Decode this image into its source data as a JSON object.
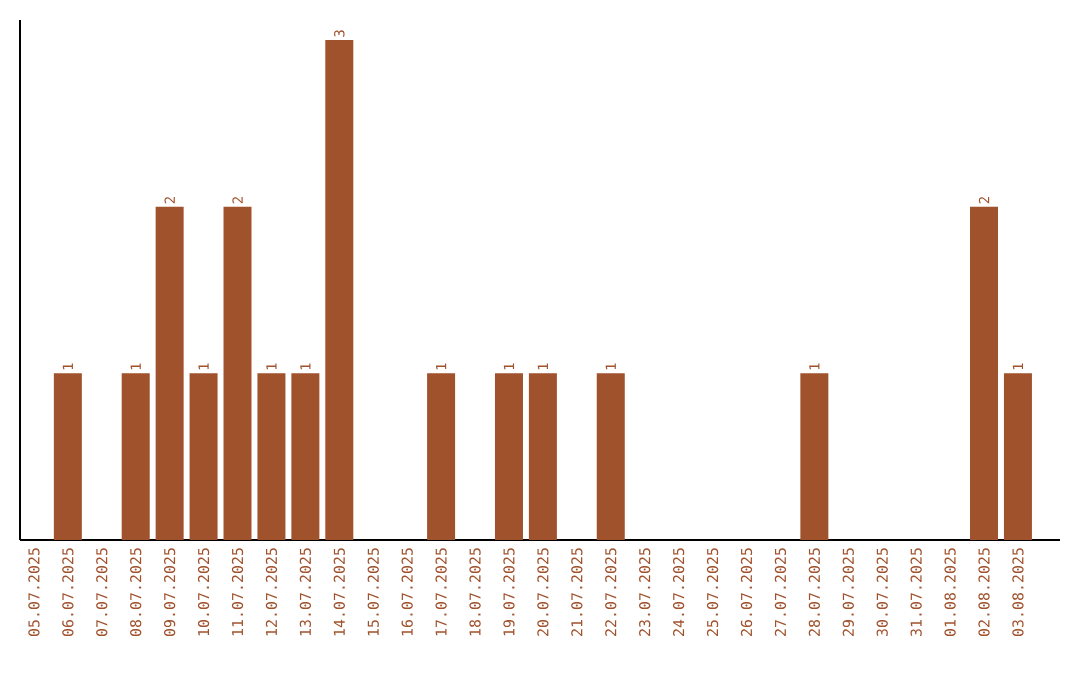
{
  "chart_data": {
    "type": "bar",
    "categories": [
      "05.07.2025",
      "06.07.2025",
      "07.07.2025",
      "08.07.2025",
      "09.07.2025",
      "10.07.2025",
      "11.07.2025",
      "12.07.2025",
      "13.07.2025",
      "14.07.2025",
      "15.07.2025",
      "16.07.2025",
      "17.07.2025",
      "18.07.2025",
      "19.07.2025",
      "20.07.2025",
      "21.07.2025",
      "22.07.2025",
      "23.07.2025",
      "24.07.2025",
      "25.07.2025",
      "26.07.2025",
      "27.07.2025",
      "28.07.2025",
      "29.07.2025",
      "30.07.2025",
      "31.07.2025",
      "01.08.2025",
      "02.08.2025",
      "03.08.2025"
    ],
    "values": [
      0,
      1,
      0,
      1,
      2,
      1,
      2,
      1,
      1,
      3,
      0,
      0,
      1,
      0,
      1,
      1,
      0,
      1,
      0,
      0,
      0,
      0,
      0,
      1,
      0,
      0,
      0,
      0,
      2,
      1
    ],
    "value_labels": [
      null,
      "1",
      null,
      "1",
      "2",
      "1",
      "2",
      "1",
      "1",
      "3",
      null,
      null,
      "1",
      null,
      "1",
      "1",
      null,
      "1",
      null,
      null,
      null,
      null,
      null,
      "1",
      null,
      null,
      null,
      null,
      "2",
      "1"
    ],
    "color": "#a0522d"
  }
}
